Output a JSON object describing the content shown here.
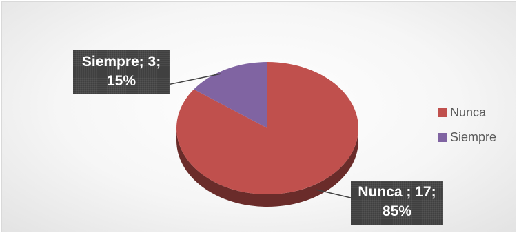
{
  "chart_data": {
    "type": "pie",
    "title": "",
    "categories": [
      "Nunca",
      "Siempre"
    ],
    "values": [
      17,
      3
    ],
    "percentages": [
      "85%",
      "15%"
    ],
    "colors": [
      "#c0504d",
      "#8064a2"
    ],
    "legend_position": "right",
    "style": "3d",
    "labels": [
      {
        "line1": "Nunca ; 17;",
        "line2": "85%"
      },
      {
        "line1": "Siempre; 3;",
        "line2": "15%"
      }
    ],
    "legend": [
      "Nunca",
      "Siempre"
    ]
  }
}
